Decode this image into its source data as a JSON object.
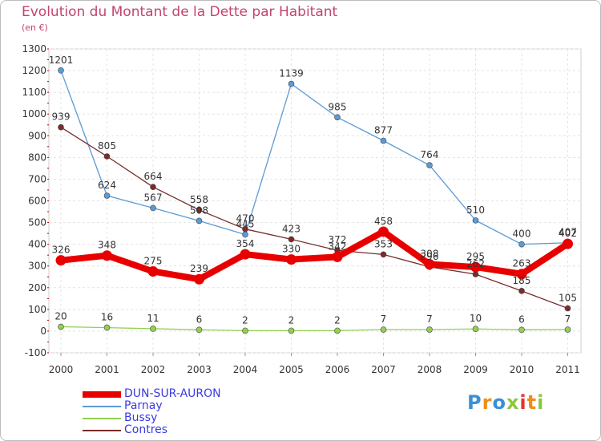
{
  "header": {
    "title": "Evolution du Montant de la Dette par Habitant",
    "subtitle": "(en €)"
  },
  "logo": {
    "text": "Proxiti",
    "colors": [
      "#3b8fd8",
      "#f08c1a",
      "#3b8fd8",
      "#8cc63f",
      "#e8322d",
      "#f08c1a",
      "#8cc63f"
    ]
  },
  "chart_data": {
    "type": "line",
    "title": "Evolution du Montant de la Dette par Habitant",
    "ylabel": "(en €)",
    "xlabel": "",
    "categories": [
      "2000",
      "2001",
      "2002",
      "2003",
      "2004",
      "2005",
      "2006",
      "2007",
      "2008",
      "2009",
      "2010",
      "2011"
    ],
    "ylim": [
      -100,
      1300
    ],
    "yticks": [
      -100,
      0,
      100,
      200,
      300,
      400,
      500,
      600,
      700,
      800,
      900,
      1000,
      1100,
      1200,
      1300
    ],
    "grid": true,
    "legend_position": "bottom-left",
    "series": [
      {
        "name": "DUN-SUR-AURON",
        "color": "#e80000",
        "values": [
          326,
          348,
          275,
          239,
          354,
          330,
          342,
          458,
          308,
          295,
          263,
          402
        ]
      },
      {
        "name": "Parnay",
        "color": "#5b9bd5",
        "values": [
          1201,
          624,
          567,
          508,
          445,
          1139,
          985,
          877,
          764,
          510,
          400,
          407
        ]
      },
      {
        "name": "Bussy",
        "color": "#92d050",
        "values": [
          20,
          16,
          11,
          6,
          2,
          2,
          2,
          7,
          7,
          10,
          6,
          7
        ]
      },
      {
        "name": "Contres",
        "color": "#7a2b2b",
        "values": [
          939,
          805,
          664,
          558,
          470,
          423,
          372,
          353,
          296,
          262,
          185,
          105
        ]
      }
    ]
  }
}
